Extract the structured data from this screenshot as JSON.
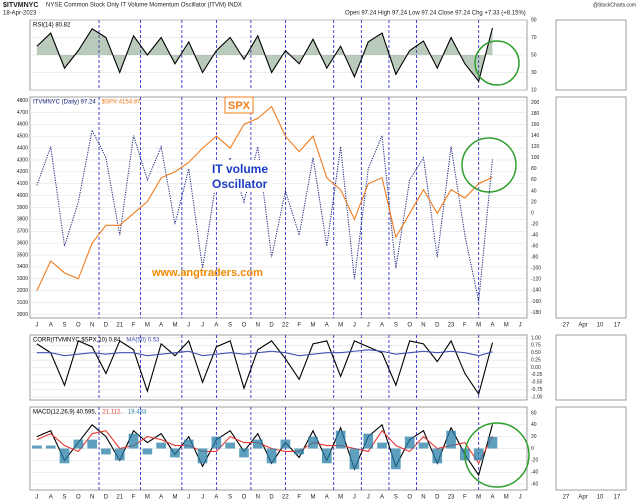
{
  "header": {
    "symbol": "$ITVMNYC",
    "title": "NYSE Common Stock Only IT Volume Momentum Oscillator (ITVM) INDX",
    "date": "18-Apr-2023",
    "quote": "Open 97.24 High 97.24 Low 97.24 Close 97.24 Chg +7.33 (+8.15%)",
    "credit": "@StockCharts.com"
  },
  "time_axis": {
    "labels": [
      "J",
      "A",
      "S",
      "O",
      "N",
      "D",
      "21",
      "F",
      "M",
      "A",
      "M",
      "J",
      "J",
      "A",
      "S",
      "O",
      "N",
      "D",
      "22",
      "F",
      "M",
      "A",
      "M",
      "J",
      "J",
      "A",
      "S",
      "O",
      "N",
      "D",
      "23",
      "F",
      "M",
      "A",
      "M",
      "J"
    ]
  },
  "side_axis": {
    "labels": [
      "27",
      "Apr",
      "10",
      "17"
    ]
  },
  "annotations": {
    "spx": "SPX",
    "oscillator_1": "IT volume",
    "oscillator_2": "Oscillator",
    "site": "www.angtraders.com"
  },
  "chart_data": [
    {
      "type": "line",
      "ylim": [
        10,
        90
      ],
      "yticks": [
        10,
        30,
        50,
        70,
        90
      ],
      "grid": true,
      "series": [
        {
          "name": "RSI(14) 80.82",
          "color": "#000000",
          "style": "filled",
          "values": [
            60,
            75,
            35,
            55,
            80,
            70,
            30,
            72,
            50,
            70,
            40,
            65,
            30,
            55,
            70,
            45,
            72,
            30,
            55,
            40,
            68,
            35,
            60,
            25,
            65,
            75,
            28,
            55,
            66,
            35,
            70,
            40,
            20,
            81
          ]
        }
      ]
    },
    {
      "type": "line",
      "ylim": [
        2970,
        4830
      ],
      "yticks": [
        3000,
        3100,
        3200,
        3300,
        3400,
        3500,
        3600,
        3700,
        3800,
        3900,
        4000,
        4100,
        4200,
        4300,
        4400,
        4500,
        4600,
        4700,
        4800
      ],
      "y2lim": [
        -190,
        210
      ],
      "y2ticks": [
        -180,
        -160,
        -140,
        -120,
        -100,
        -80,
        -60,
        -40,
        -20,
        0,
        20,
        40,
        60,
        80,
        100,
        120,
        140,
        160,
        180,
        200
      ],
      "grid": true,
      "series": [
        {
          "name": "ITVMNYC (Daily) 97.24",
          "color": "#1a237e",
          "style": "dotted",
          "axis": "y2",
          "values": [
            50,
            120,
            -60,
            20,
            150,
            100,
            -40,
            140,
            60,
            120,
            -20,
            80,
            -100,
            60,
            100,
            20,
            120,
            -80,
            40,
            -40,
            100,
            -60,
            120,
            -120,
            80,
            140,
            -100,
            60,
            100,
            -80,
            120,
            -40,
            -160,
            97
          ]
        },
        {
          "name": "$SPX 4154.87",
          "color": "#f07c1e",
          "style": "solid",
          "values": [
            3200,
            3450,
            3350,
            3300,
            3600,
            3750,
            3750,
            3850,
            3950,
            4150,
            4200,
            4280,
            4400,
            4500,
            4400,
            4600,
            4650,
            4750,
            4500,
            4370,
            4500,
            4150,
            4050,
            3800,
            4100,
            4150,
            3650,
            3850,
            4050,
            3850,
            4050,
            3980,
            4100,
            4155
          ]
        }
      ]
    },
    {
      "type": "line",
      "ylim": [
        -1.1,
        1.1
      ],
      "yticks": [
        {
          "value": 1,
          "label": "1.00"
        },
        {
          "value": 0.75,
          "label": "0.75"
        },
        {
          "value": 0.5,
          "label": "0.50"
        },
        {
          "value": 0.25,
          "label": "0.25"
        },
        {
          "value": 0,
          "label": "0.00"
        },
        {
          "value": -0.25,
          "label": "-0.25"
        },
        {
          "value": -0.5,
          "label": "-0.50"
        },
        {
          "value": -0.75,
          "label": "-0.75"
        },
        {
          "value": -1,
          "label": "-1.00"
        }
      ],
      "grid": true,
      "series": [
        {
          "name": "CORR(ITVMNYC,$SPX,10) 0.84",
          "color": "#000000",
          "style": "solid",
          "values": [
            0.8,
            0.5,
            -0.6,
            0.9,
            0.7,
            -0.2,
            0.9,
            0.6,
            -0.8,
            0.8,
            0.4,
            0.9,
            -0.5,
            0.7,
            0.9,
            -0.7,
            0.6,
            0.9,
            0.3,
            -0.4,
            0.8,
            0.9,
            -0.3,
            0.9,
            0.7,
            0.5,
            -0.6,
            0.9,
            0.8,
            0.2,
            0.9,
            -0.2,
            -0.9,
            0.84
          ]
        },
        {
          "name": "MA(50) 0.53",
          "color": "#3f51b5",
          "style": "solid",
          "values": [
            0.5,
            0.5,
            0.4,
            0.45,
            0.5,
            0.45,
            0.5,
            0.5,
            0.4,
            0.45,
            0.5,
            0.55,
            0.4,
            0.45,
            0.5,
            0.45,
            0.5,
            0.55,
            0.5,
            0.4,
            0.45,
            0.5,
            0.5,
            0.55,
            0.6,
            0.55,
            0.45,
            0.5,
            0.55,
            0.5,
            0.55,
            0.5,
            0.4,
            0.53
          ]
        }
      ]
    },
    {
      "type": "line",
      "ylim": [
        -70,
        70
      ],
      "yticks": [
        -60,
        -40,
        -20,
        0,
        20,
        40,
        60
      ],
      "grid": true,
      "series": [
        {
          "name": "MACD(12,26,9) 40.595,",
          "color": "#000000",
          "style": "solid",
          "values": [
            20,
            30,
            -20,
            10,
            40,
            20,
            -20,
            30,
            10,
            25,
            -10,
            20,
            -30,
            15,
            30,
            -5,
            25,
            -25,
            10,
            -15,
            30,
            -20,
            35,
            -35,
            20,
            40,
            -30,
            15,
            30,
            -25,
            35,
            -10,
            -45,
            40.6
          ]
        },
        {
          "name": "21.112,",
          "color": "#e53935",
          "style": "solid",
          "values": [
            15,
            25,
            5,
            -5,
            25,
            30,
            0,
            5,
            20,
            15,
            5,
            5,
            -5,
            -5,
            20,
            10,
            10,
            0,
            -5,
            -5,
            10,
            5,
            5,
            0,
            -5,
            30,
            5,
            -5,
            20,
            0,
            5,
            10,
            -25,
            21.1
          ]
        },
        {
          "name": "19.483",
          "color": "#2a7fa8",
          "style": "bar",
          "values": [
            5,
            5,
            -25,
            15,
            15,
            -10,
            -20,
            25,
            -10,
            10,
            -15,
            15,
            -25,
            20,
            10,
            -15,
            15,
            -25,
            15,
            -10,
            20,
            -25,
            30,
            -35,
            25,
            10,
            -35,
            20,
            10,
            -25,
            30,
            -20,
            -20,
            19.5
          ]
        }
      ]
    }
  ]
}
